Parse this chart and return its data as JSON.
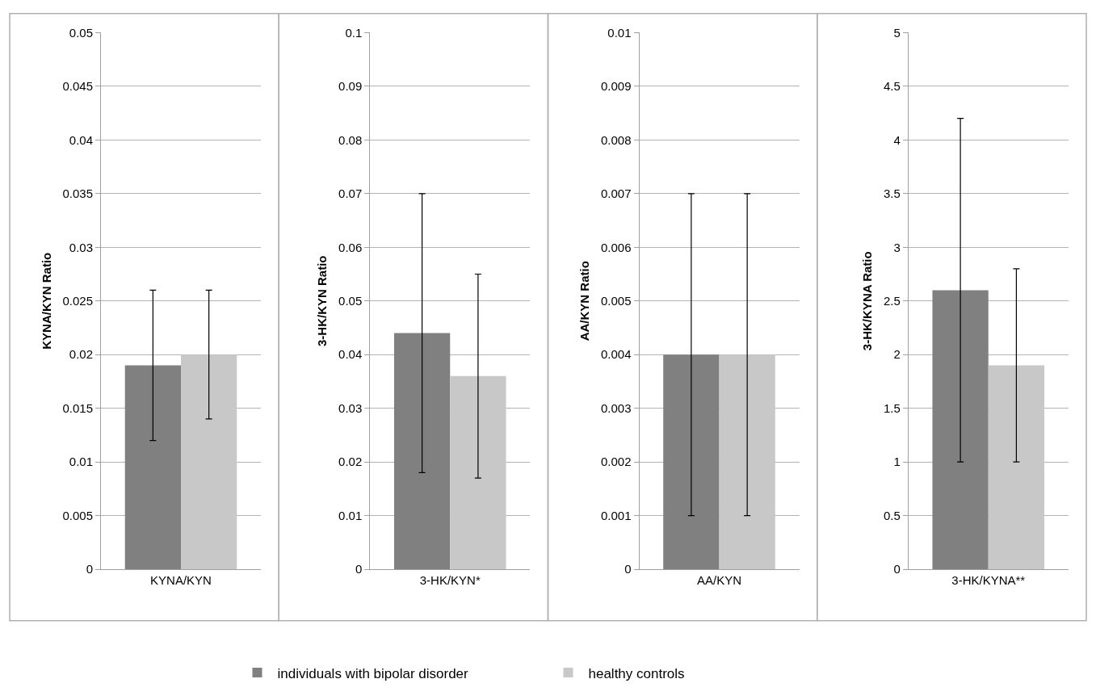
{
  "chart_data": [
    {
      "type": "bar",
      "ylabel": "KYNA/KYN Ratio",
      "categories": [
        "KYNA/KYN"
      ],
      "ylim": [
        0,
        0.05
      ],
      "yticks": [
        0,
        0.005,
        0.01,
        0.015,
        0.02,
        0.025,
        0.03,
        0.035,
        0.04,
        0.045,
        0.05
      ],
      "grid": "y",
      "legend": "bottom",
      "series": [
        {
          "name": "individuals with bipolar disorder",
          "color": "#808080",
          "values": [
            0.019
          ],
          "errors": [
            [
              0.012,
              0.026
            ]
          ]
        },
        {
          "name": "healthy controls",
          "color": "#c8c8c8",
          "values": [
            0.02
          ],
          "errors": [
            [
              0.014,
              0.026
            ]
          ]
        }
      ]
    },
    {
      "type": "bar",
      "ylabel": "3-HK/KYN Ratio",
      "categories": [
        "3-HK/KYN*"
      ],
      "ylim": [
        0,
        0.1
      ],
      "yticks": [
        0,
        0.01,
        0.02,
        0.03,
        0.04,
        0.05,
        0.06,
        0.07,
        0.08,
        0.09,
        0.1
      ],
      "grid": "y",
      "series": [
        {
          "color": "#808080",
          "values": [
            0.044
          ],
          "errors": [
            [
              0.018,
              0.07
            ]
          ]
        },
        {
          "color": "#c8c8c8",
          "values": [
            0.036
          ],
          "errors": [
            [
              0.017,
              0.055
            ]
          ]
        }
      ]
    },
    {
      "type": "bar",
      "ylabel": "AA/KYN Ratio",
      "categories": [
        "AA/KYN"
      ],
      "ylim": [
        0,
        0.01
      ],
      "yticks": [
        0,
        0.001,
        0.002,
        0.003,
        0.004,
        0.005,
        0.006,
        0.007,
        0.008,
        0.009,
        0.01
      ],
      "grid": "y",
      "series": [
        {
          "color": "#808080",
          "values": [
            0.004
          ],
          "errors": [
            [
              0.001,
              0.007
            ]
          ]
        },
        {
          "color": "#c8c8c8",
          "values": [
            0.004
          ],
          "errors": [
            [
              0.001,
              0.007
            ]
          ]
        }
      ]
    },
    {
      "type": "bar",
      "ylabel": "3-HK/KYNA Ratio",
      "categories": [
        "3-HK/KYNA**"
      ],
      "ylim": [
        0,
        5
      ],
      "yticks": [
        0,
        0.5,
        1,
        1.5,
        2,
        2.5,
        3,
        3.5,
        4,
        4.5,
        5
      ],
      "grid": "y",
      "series": [
        {
          "color": "#808080",
          "values": [
            2.6
          ],
          "errors": [
            [
              1,
              4.2
            ]
          ]
        },
        {
          "color": "#c8c8c8",
          "values": [
            1.9
          ],
          "errors": [
            [
              1,
              2.8
            ]
          ]
        }
      ]
    }
  ]
}
